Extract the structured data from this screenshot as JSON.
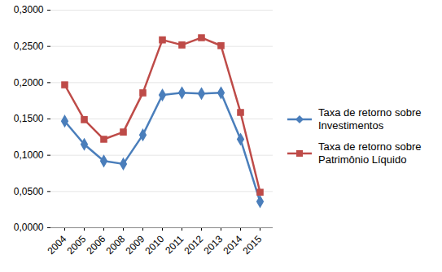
{
  "chart_data": {
    "type": "line",
    "categories": [
      "2004",
      "2005",
      "2006",
      "2008",
      "2009",
      "2010",
      "2011",
      "2012",
      "2013",
      "2014",
      "2015"
    ],
    "series": [
      {
        "name": "Taxa de retorno sobre Investimentos",
        "color": "#4a7ebb",
        "marker": "diamond",
        "values": [
          0.147,
          0.115,
          0.092,
          0.088,
          0.128,
          0.183,
          0.186,
          0.185,
          0.186,
          0.122,
          0.036
        ]
      },
      {
        "name": "Taxa de retorno sobre Patrimônio Líquido",
        "color": "#be4b48",
        "marker": "square",
        "values": [
          0.197,
          0.149,
          0.122,
          0.132,
          0.186,
          0.259,
          0.252,
          0.262,
          0.251,
          0.159,
          0.049
        ]
      }
    ],
    "ylim": [
      0,
      0.3
    ],
    "yticks": [
      {
        "value": 0,
        "label": "0,0000"
      },
      {
        "value": 0.05,
        "label": "0,0500"
      },
      {
        "value": 0.1,
        "label": "0,1000"
      },
      {
        "value": 0.15,
        "label": "0,1500"
      },
      {
        "value": 0.2,
        "label": "0,2000"
      },
      {
        "value": 0.25,
        "label": "0,2500"
      },
      {
        "value": 0.3,
        "label": "0,3000"
      }
    ],
    "grid": true,
    "legend": "right"
  }
}
